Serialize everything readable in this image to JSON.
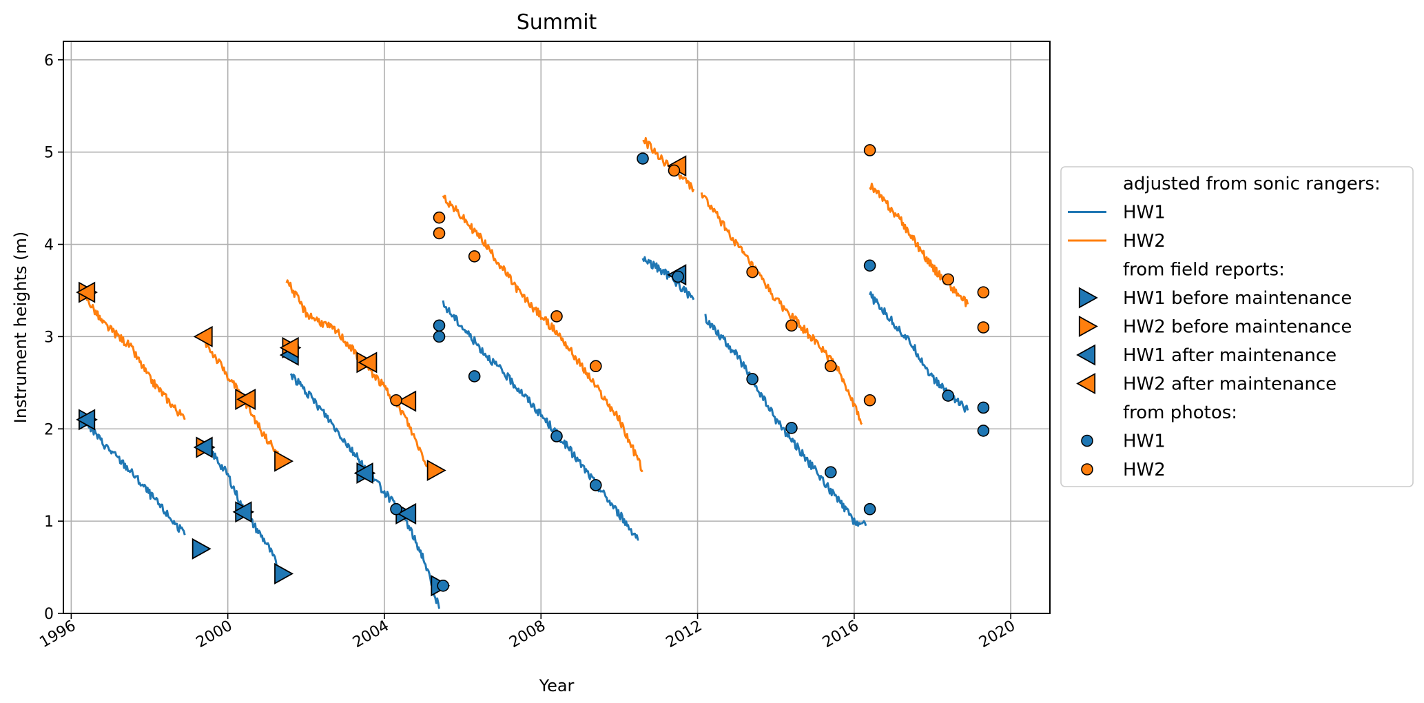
{
  "chart_data": {
    "type": "line",
    "title": "Summit",
    "xlabel": "Year",
    "ylabel": "Instrument heights (m)",
    "xlim": [
      1995.8,
      2021.0
    ],
    "ylim": [
      0,
      6.2
    ],
    "x_ticks": [
      1996,
      2000,
      2004,
      2008,
      2012,
      2016,
      2020
    ],
    "y_ticks": [
      0,
      1,
      2,
      3,
      4,
      5,
      6
    ],
    "grid": true,
    "legend_position": "center-right, outside plot",
    "colors": {
      "HW1": "#1f77b4",
      "HW2": "#ff7f0e"
    },
    "series": [
      {
        "name": "HW1",
        "group": "adjusted from sonic rangers",
        "kind": "line",
        "segments": [
          [
            [
              1996.3,
              2.12
            ],
            [
              1996.8,
              1.85
            ],
            [
              1997.5,
              1.55
            ],
            [
              1998.0,
              1.3
            ],
            [
              1998.9,
              0.85
            ]
          ],
          [
            [
              1999.5,
              1.8
            ],
            [
              2000.0,
              1.5
            ],
            [
              2000.4,
              1.12
            ],
            [
              2001.0,
              0.75
            ],
            [
              2001.4,
              0.4
            ]
          ],
          [
            [
              2001.6,
              2.6
            ],
            [
              2002.5,
              2.15
            ],
            [
              2003.5,
              1.58
            ],
            [
              2004.5,
              1.05
            ],
            [
              2005.0,
              0.6
            ],
            [
              2005.4,
              0.05
            ]
          ],
          [
            [
              2005.5,
              3.35
            ],
            [
              2006.5,
              2.85
            ],
            [
              2007.5,
              2.4
            ],
            [
              2008.5,
              1.9
            ],
            [
              2009.5,
              1.35
            ],
            [
              2010.5,
              0.8
            ]
          ],
          [
            [
              2010.6,
              3.85
            ],
            [
              2011.3,
              3.65
            ],
            [
              2011.9,
              3.4
            ]
          ],
          [
            [
              2012.2,
              3.2
            ],
            [
              2013.0,
              2.8
            ],
            [
              2014.0,
              2.1
            ],
            [
              2015.0,
              1.55
            ],
            [
              2016.0,
              1.0
            ],
            [
              2016.3,
              0.95
            ]
          ],
          [
            [
              2016.4,
              3.45
            ],
            [
              2017.5,
              2.9
            ],
            [
              2018.0,
              2.55
            ],
            [
              2018.9,
              2.2
            ]
          ]
        ]
      },
      {
        "name": "HW2",
        "group": "adjusted from sonic rangers",
        "kind": "line",
        "segments": [
          [
            [
              1996.3,
              3.48
            ],
            [
              1996.8,
              3.15
            ],
            [
              1997.5,
              2.9
            ],
            [
              1998.0,
              2.55
            ],
            [
              1998.9,
              2.1
            ]
          ],
          [
            [
              1999.4,
              2.95
            ],
            [
              1999.8,
              2.7
            ],
            [
              2000.4,
              2.32
            ],
            [
              2000.9,
              1.95
            ],
            [
              2001.4,
              1.65
            ]
          ],
          [
            [
              2001.5,
              3.62
            ],
            [
              2002.0,
              3.25
            ],
            [
              2002.8,
              3.05
            ],
            [
              2003.5,
              2.7
            ],
            [
              2004.0,
              2.45
            ],
            [
              2004.5,
              2.15
            ],
            [
              2005.1,
              1.6
            ]
          ],
          [
            [
              2005.5,
              4.52
            ],
            [
              2006.5,
              4.05
            ],
            [
              2007.5,
              3.45
            ],
            [
              2008.5,
              3.0
            ],
            [
              2009.5,
              2.4
            ],
            [
              2010.0,
              2.1
            ],
            [
              2010.6,
              1.55
            ]
          ],
          [
            [
              2010.6,
              5.15
            ],
            [
              2011.0,
              4.95
            ],
            [
              2011.9,
              4.6
            ]
          ],
          [
            [
              2012.1,
              4.55
            ],
            [
              2013.0,
              4.0
            ],
            [
              2014.0,
              3.4
            ],
            [
              2015.0,
              2.95
            ],
            [
              2015.6,
              2.65
            ],
            [
              2016.2,
              2.05
            ]
          ],
          [
            [
              2016.4,
              4.65
            ],
            [
              2017.2,
              4.25
            ],
            [
              2018.0,
              3.75
            ],
            [
              2018.9,
              3.35
            ]
          ]
        ]
      },
      {
        "name": "HW1 before maintenance",
        "group": "from field reports",
        "kind": "marker",
        "marker": "triangle-right",
        "points": [
          [
            1996.4,
            2.1
          ],
          [
            1999.3,
            0.7
          ],
          [
            1999.4,
            1.8
          ],
          [
            2000.4,
            1.1
          ],
          [
            2001.4,
            0.43
          ],
          [
            2003.5,
            1.52
          ],
          [
            2004.5,
            1.08
          ],
          [
            2005.4,
            0.3
          ]
        ]
      },
      {
        "name": "HW2 before maintenance",
        "group": "from field reports",
        "kind": "marker",
        "marker": "triangle-right",
        "points": [
          [
            1996.4,
            3.48
          ],
          [
            1999.4,
            1.8
          ],
          [
            2000.4,
            2.32
          ],
          [
            2001.4,
            1.65
          ],
          [
            2001.6,
            2.88
          ],
          [
            2003.5,
            2.72
          ],
          [
            2005.3,
            1.55
          ]
        ]
      },
      {
        "name": "HW1 after maintenance",
        "group": "from field reports",
        "kind": "marker",
        "marker": "triangle-left",
        "points": [
          [
            1996.4,
            2.1
          ],
          [
            1999.4,
            1.8
          ],
          [
            2000.4,
            1.1
          ],
          [
            2001.6,
            2.8
          ],
          [
            2003.5,
            1.52
          ],
          [
            2004.6,
            1.08
          ],
          [
            2011.5,
            3.67
          ]
        ]
      },
      {
        "name": "HW2 after maintenance",
        "group": "from field reports",
        "kind": "marker",
        "marker": "triangle-left",
        "points": [
          [
            1996.4,
            3.48
          ],
          [
            1999.4,
            3.0
          ],
          [
            2000.5,
            2.32
          ],
          [
            2001.6,
            2.88
          ],
          [
            2003.6,
            2.72
          ],
          [
            2004.6,
            2.3
          ],
          [
            2011.5,
            4.85
          ]
        ]
      },
      {
        "name": "HW1",
        "group": "from photos",
        "kind": "marker",
        "marker": "circle",
        "points": [
          [
            2005.4,
            3.12
          ],
          [
            2005.4,
            3.0
          ],
          [
            2005.5,
            0.3
          ],
          [
            2004.3,
            1.13
          ],
          [
            2006.3,
            2.57
          ],
          [
            2008.4,
            1.92
          ],
          [
            2009.4,
            1.39
          ],
          [
            2010.6,
            4.93
          ],
          [
            2011.5,
            3.65
          ],
          [
            2013.4,
            2.54
          ],
          [
            2014.4,
            2.01
          ],
          [
            2015.4,
            1.53
          ],
          [
            2016.4,
            1.13
          ],
          [
            2016.4,
            3.77
          ],
          [
            2018.4,
            2.36
          ],
          [
            2019.3,
            2.23
          ],
          [
            2019.3,
            1.98
          ]
        ]
      },
      {
        "name": "HW2",
        "group": "from photos",
        "kind": "marker",
        "marker": "circle",
        "points": [
          [
            2004.3,
            2.31
          ],
          [
            2005.4,
            4.29
          ],
          [
            2005.4,
            4.12
          ],
          [
            2006.3,
            3.87
          ],
          [
            2008.4,
            3.22
          ],
          [
            2009.4,
            2.68
          ],
          [
            2011.4,
            4.8
          ],
          [
            2013.4,
            3.7
          ],
          [
            2014.4,
            3.12
          ],
          [
            2015.4,
            2.68
          ],
          [
            2016.4,
            2.31
          ],
          [
            2016.4,
            5.02
          ],
          [
            2018.4,
            3.62
          ],
          [
            2019.3,
            3.48
          ],
          [
            2019.3,
            3.1
          ]
        ]
      }
    ],
    "legend": {
      "entries": [
        {
          "type": "header",
          "label": "adjusted from sonic rangers:"
        },
        {
          "type": "line",
          "color": "#1f77b4",
          "label": "HW1"
        },
        {
          "type": "line",
          "color": "#ff7f0e",
          "label": "HW2"
        },
        {
          "type": "header",
          "label": "from field reports:"
        },
        {
          "type": "triangle-right",
          "color": "#1f77b4",
          "label": "HW1 before maintenance"
        },
        {
          "type": "triangle-right",
          "color": "#ff7f0e",
          "label": "HW2 before maintenance"
        },
        {
          "type": "triangle-left",
          "color": "#1f77b4",
          "label": "HW1 after maintenance"
        },
        {
          "type": "triangle-left",
          "color": "#ff7f0e",
          "label": "HW2 after maintenance"
        },
        {
          "type": "header",
          "label": "from photos:"
        },
        {
          "type": "circle",
          "color": "#1f77b4",
          "label": "HW1"
        },
        {
          "type": "circle",
          "color": "#ff7f0e",
          "label": "HW2"
        }
      ]
    }
  }
}
